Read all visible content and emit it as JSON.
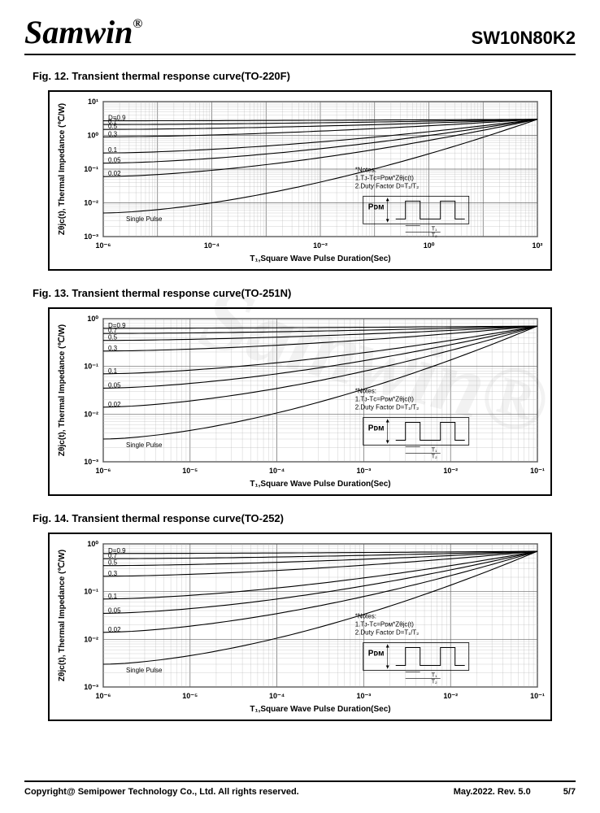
{
  "header": {
    "brand": "Samwin",
    "reg": "®",
    "partno": "SW10N80K2"
  },
  "watermark": "Samwin®",
  "figures": [
    {
      "title": "Fig. 12. Transient thermal response curve(TO-220F)",
      "xlabel": "T₁,Square Wave Pulse Duration(Sec)",
      "ylabel": "Zθjc(t), Thermal Impedance (℃/W)",
      "xlog": true,
      "ylog": true,
      "xlim": [
        1e-06,
        100.0
      ],
      "ylim": [
        0.001,
        10.0
      ],
      "xticks": [
        1e-06,
        0.0001,
        0.01,
        1,
        100.0
      ],
      "xtick_labels": [
        "10⁻⁶",
        "10⁻⁴",
        "10⁻²",
        "10⁰",
        "10²"
      ],
      "yticks": [
        0.001,
        0.01,
        0.1,
        1,
        10.0
      ],
      "ytick_labels": [
        "10⁻³",
        "10⁻²",
        "10⁻¹",
        "10⁰",
        "10¹"
      ],
      "series": [
        {
          "label": "D=0.9",
          "y0": 2.7,
          "yf": 3.0
        },
        {
          "label": "0.7",
          "y0": 2.1,
          "yf": 3.0
        },
        {
          "label": "0.5",
          "y0": 1.5,
          "yf": 3.0
        },
        {
          "label": "0.3",
          "y0": 0.9,
          "yf": 3.0
        },
        {
          "label": "0.1",
          "y0": 0.3,
          "yf": 3.0
        },
        {
          "label": "0.05",
          "y0": 0.15,
          "yf": 3.0
        },
        {
          "label": "0.02",
          "y0": 0.06,
          "yf": 3.0
        },
        {
          "label": "Single Pulse",
          "y0": 0.005,
          "yf": 3.0
        }
      ],
      "notes": [
        "*Notes:",
        "1.Tᴊ-Tᴄ=Pᴅᴍ*Zθjc(t)",
        "2.Duty Factor D=T₁/T₂"
      ],
      "pdm_label": "Pᴅᴍ"
    },
    {
      "title": "Fig. 13. Transient thermal response curve(TO-251N)",
      "xlabel": "T₁,Square Wave Pulse Duration(Sec)",
      "ylabel": "Zθjc(t), Thermal Impedance (℃/W)",
      "xlog": true,
      "ylog": true,
      "xlim": [
        1e-06,
        0.1
      ],
      "ylim": [
        0.001,
        1
      ],
      "xticks": [
        1e-06,
        1e-05,
        0.0001,
        0.001,
        0.01,
        0.1
      ],
      "xtick_labels": [
        "10⁻⁶",
        "10⁻⁵",
        "10⁻⁴",
        "10⁻³",
        "10⁻²",
        "10⁻¹"
      ],
      "yticks": [
        0.001,
        0.01,
        0.1,
        1
      ],
      "ytick_labels": [
        "10⁻³",
        "10⁻²",
        "10⁻¹",
        "10⁰"
      ],
      "series": [
        {
          "label": "D=0.9",
          "y0": 0.63,
          "yf": 0.7
        },
        {
          "label": "0.7",
          "y0": 0.49,
          "yf": 0.7
        },
        {
          "label": "0.5",
          "y0": 0.35,
          "yf": 0.7
        },
        {
          "label": "0.3",
          "y0": 0.21,
          "yf": 0.7
        },
        {
          "label": "0.1",
          "y0": 0.07,
          "yf": 0.7
        },
        {
          "label": "0.05",
          "y0": 0.035,
          "yf": 0.7
        },
        {
          "label": "0.02",
          "y0": 0.014,
          "yf": 0.7
        },
        {
          "label": "Single Pulse",
          "y0": 0.003,
          "yf": 0.7
        }
      ],
      "notes": [
        "*Notes:",
        "1.Tᴊ-Tᴄ=Pᴅᴍ*Zθjc(t)",
        "2.Duty Factor D=T₁/T₂"
      ],
      "pdm_label": "Pᴅᴍ"
    },
    {
      "title": "Fig. 14. Transient thermal response curve(TO-252)",
      "xlabel": "T₁,Square Wave Pulse Duration(Sec)",
      "ylabel": "Zθjc(t), Thermal Impedance (℃/W)",
      "xlog": true,
      "ylog": true,
      "xlim": [
        1e-06,
        0.1
      ],
      "ylim": [
        0.001,
        1
      ],
      "xticks": [
        1e-06,
        1e-05,
        0.0001,
        0.001,
        0.01,
        0.1
      ],
      "xtick_labels": [
        "10⁻⁶",
        "10⁻⁵",
        "10⁻⁴",
        "10⁻³",
        "10⁻²",
        "10⁻¹"
      ],
      "yticks": [
        0.001,
        0.01,
        0.1,
        1
      ],
      "ytick_labels": [
        "10⁻³",
        "10⁻²",
        "10⁻¹",
        "10⁰"
      ],
      "series": [
        {
          "label": "D=0.9",
          "y0": 0.63,
          "yf": 0.7
        },
        {
          "label": "0.7",
          "y0": 0.49,
          "yf": 0.7
        },
        {
          "label": "0.5",
          "y0": 0.35,
          "yf": 0.7
        },
        {
          "label": "0.3",
          "y0": 0.21,
          "yf": 0.7
        },
        {
          "label": "0.1",
          "y0": 0.07,
          "yf": 0.7
        },
        {
          "label": "0.05",
          "y0": 0.035,
          "yf": 0.7
        },
        {
          "label": "0.02",
          "y0": 0.014,
          "yf": 0.7
        },
        {
          "label": "Single Pulse",
          "y0": 0.003,
          "yf": 0.7
        }
      ],
      "notes": [
        "*Notes:",
        "1.Tᴊ-Tᴄ=Pᴅᴍ*Zθjc(t)",
        "2.Duty Factor D=T₁/T₂"
      ],
      "pdm_label": "Pᴅᴍ"
    }
  ],
  "footer": {
    "copyright": "Copyright@ Semipower Technology Co., Ltd. All rights reserved.",
    "date": "May.2022. Rev. 5.0",
    "page": "5/7"
  },
  "style": {
    "grid_color": "#666666",
    "minor_grid_color": "#bbbbbb",
    "line_color": "#000000",
    "plot_border": "#000000",
    "bg": "#ffffff"
  }
}
